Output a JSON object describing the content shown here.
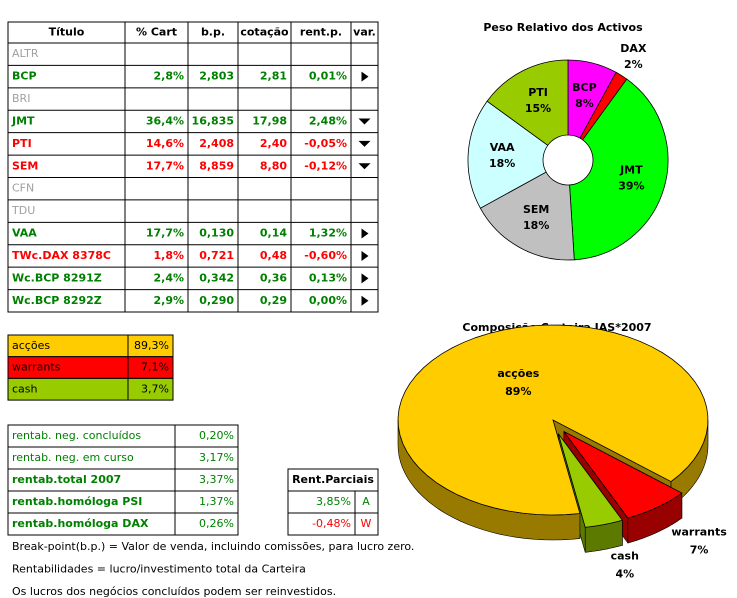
{
  "table": {
    "header": [
      "Título",
      "% Cart",
      "b.p.",
      "cotação",
      "rent.p.",
      "var."
    ],
    "rows": [
      {
        "cells": [
          "ALTR"
        ],
        "color": "#a0a0a0"
      },
      {
        "cells": [
          "BCP",
          "2,8%",
          "2,803",
          "2,81",
          "0,01%"
        ],
        "color": "#008000",
        "arrow": "right"
      },
      {
        "cells": [
          "BRI"
        ],
        "color": "#a0a0a0"
      },
      {
        "cells": [
          "JMT",
          "36,4%",
          "16,835",
          "17,98",
          "2,48%"
        ],
        "color": "#008000",
        "arrow": "down"
      },
      {
        "cells": [
          "PTI",
          "14,6%",
          "2,408",
          "2,40",
          "-0,05%"
        ],
        "color": "#ff0000",
        "arrow": "down"
      },
      {
        "cells": [
          "SEM",
          "17,7%",
          "8,859",
          "8,80",
          "-0,12%"
        ],
        "color": "#ff0000",
        "arrow": "down"
      },
      {
        "cells": [
          "CFN"
        ],
        "color": "#a0a0a0"
      },
      {
        "cells": [
          "TDU"
        ],
        "color": "#a0a0a0"
      },
      {
        "cells": [
          "VAA",
          "17,7%",
          "0,130",
          "0,14",
          "1,32%"
        ],
        "color": "#008000",
        "arrow": "right"
      },
      {
        "cells": [
          "TWc.DAX 8378C",
          "1,8%",
          "0,721",
          "0,48",
          "-0,60%"
        ],
        "color": "#ff0000",
        "arrow": "right"
      },
      {
        "cells": [
          "Wc.BCP 8291Z",
          "2,4%",
          "0,342",
          "0,36",
          "0,13%"
        ],
        "color": "#008000",
        "arrow": "right"
      },
      {
        "cells": [
          "Wc.BCP 8292Z",
          "2,9%",
          "0,290",
          "0,29",
          "0,00%"
        ],
        "color": "#008000",
        "arrow": "right"
      }
    ]
  },
  "summary": {
    "rows": [
      {
        "label": "acções",
        "value": "89,3%",
        "color": "#ffcc00"
      },
      {
        "label": "warrants",
        "value": "7,1%",
        "color": "#ff0000"
      },
      {
        "label": "cash",
        "value": "3,7%",
        "color": "#99cc00"
      }
    ]
  },
  "rentab": {
    "rows": [
      {
        "label": "rentab. neg. concluídos",
        "value": "0,20%",
        "bold": false
      },
      {
        "label": "rentab. neg. em curso",
        "value": "3,17%",
        "bold": false
      },
      {
        "label": "rentab.total 2007",
        "value": "3,37%",
        "bold": true
      },
      {
        "label": "rentab.homóloga PSI",
        "value": "1,37%",
        "bold": true
      },
      {
        "label": "rentab.homóloga DAX",
        "value": "0,26%",
        "bold": true
      }
    ]
  },
  "parciais": {
    "title": "Rent.Parciais",
    "rows": [
      {
        "value": "3,85%",
        "tag": "A",
        "color": "#008000"
      },
      {
        "value": "-0,48%",
        "tag": "W",
        "color": "#ff0000"
      }
    ]
  },
  "notes": [
    "Break-point(b.p.) = Valor de venda, incluindo comissões, para lucro zero.",
    "Rentabilidades = lucro/investimento total da Carteira",
    "Os lucros dos negócios concluídos podem ser reinvestidos."
  ],
  "chart_data": [
    {
      "type": "pie",
      "title": "Peso Relativo dos Activos",
      "categories": [
        "BCP",
        "DAX",
        "JMT",
        "SEM",
        "VAA",
        "PTI"
      ],
      "values": [
        8,
        2,
        39,
        18,
        18,
        15
      ],
      "value_labels": [
        "8%",
        "2%",
        "39%",
        "18%",
        "18%",
        "15%"
      ],
      "colors": [
        "#ff00ff",
        "#ff0000",
        "#00ff00",
        "#c0c0c0",
        "#ccffff",
        "#99cc00"
      ],
      "donut": true
    },
    {
      "type": "pie3d",
      "title": "Composição Carteira JAS*2007",
      "categories": [
        "acções",
        "warrants",
        "cash"
      ],
      "values": [
        89,
        7,
        4
      ],
      "value_labels": [
        "89%",
        "7%",
        "4%"
      ],
      "colors": [
        "#ffcc00",
        "#ff0000",
        "#99cc00"
      ],
      "exploded": [
        false,
        true,
        true
      ]
    }
  ]
}
